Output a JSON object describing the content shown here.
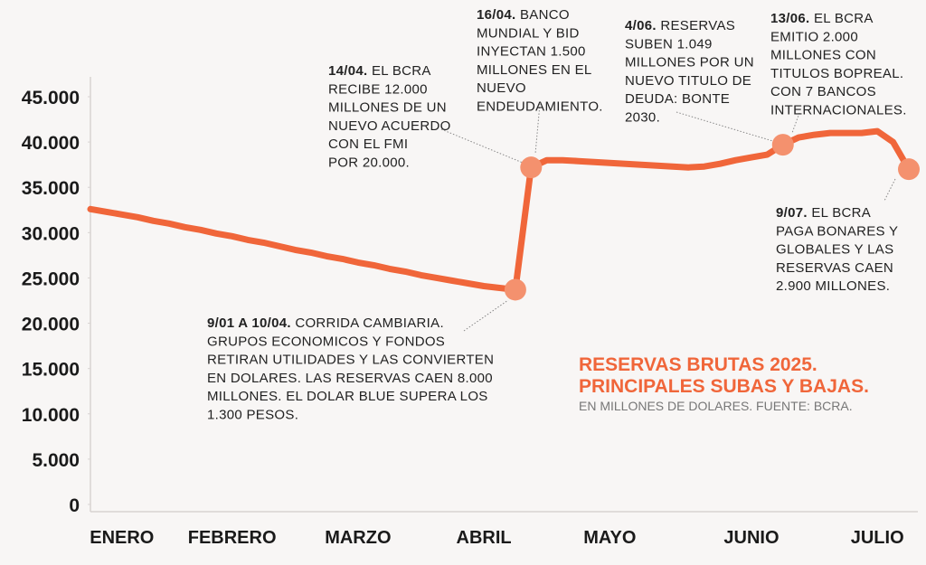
{
  "chart_data": {
    "type": "line",
    "title": [
      "RESERVAS BRUTAS 2025.",
      "PRINCIPALES SUBAS Y BAJAS."
    ],
    "subtitle": "EN MILLONES DE DOLARES. FUENTE: BCRA.",
    "categories": [
      null,
      null,
      "ENERO",
      null,
      null,
      null,
      null,
      null,
      null,
      "FEBRERO",
      null,
      null,
      null,
      null,
      null,
      null,
      null,
      "MARZO",
      null,
      null,
      null,
      null,
      null,
      null,
      null,
      "ABRIL",
      null,
      null,
      null,
      null,
      null,
      null,
      null,
      "MAYO",
      null,
      null,
      null,
      null,
      null,
      null,
      null,
      null,
      "JUNIO",
      null,
      null,
      null,
      null,
      null,
      null,
      null,
      "JULIO",
      null,
      null
    ],
    "series": [
      {
        "color": "#f0663a",
        "values": [
          32600,
          32300,
          32000,
          31700,
          31300,
          31000,
          30600,
          30300,
          29900,
          29600,
          29200,
          28900,
          28500,
          28100,
          27800,
          27400,
          27100,
          26700,
          26400,
          26000,
          25700,
          25300,
          25000,
          24700,
          24400,
          24100,
          23900,
          23700,
          37200,
          38000,
          38000,
          37900,
          37800,
          37700,
          37600,
          37500,
          37400,
          37300,
          37200,
          37300,
          37600,
          38000,
          38300,
          38600,
          39700,
          40500,
          40800,
          41000,
          41000,
          41000,
          41200,
          40000,
          37000
        ]
      },
      {
        "color": "#f4916e",
        "marker": "circle",
        "values": [
          null,
          null,
          null,
          null,
          null,
          null,
          null,
          null,
          null,
          null,
          null,
          null,
          null,
          null,
          null,
          null,
          null,
          null,
          null,
          null,
          null,
          null,
          null,
          null,
          null,
          null,
          null,
          23700,
          37200,
          null,
          null,
          null,
          null,
          null,
          null,
          null,
          null,
          null,
          null,
          null,
          null,
          null,
          null,
          null,
          39700,
          null,
          null,
          null,
          null,
          null,
          null,
          null,
          37000
        ]
      }
    ],
    "ylim": [
      0,
      45000
    ],
    "yticks": [
      0,
      {
        "value": 5000,
        "label": "5.000"
      },
      {
        "value": 10000,
        "label": "10.000"
      },
      {
        "value": 15000,
        "label": "15.000"
      },
      {
        "value": 20000,
        "label": "20.000"
      },
      {
        "value": 25000,
        "label": "25.000"
      },
      {
        "value": 30000,
        "label": "30.000"
      },
      {
        "value": 35000,
        "label": "35.000"
      },
      {
        "value": 40000,
        "label": "40.000"
      },
      {
        "value": 45000,
        "label": "45.000"
      }
    ],
    "annotations": [
      {
        "date": "9/01 A 10/04.",
        "lines": [
          " CORRIDA CAMBIARIA.",
          "GRUPOS ECONOMICOS Y FONDOS",
          "RETIRAN UTILIDADES Y LAS CONVIERTEN",
          "EN DOLARES. LAS RESERVAS CAEN 8.000",
          "MILLONES. EL DOLAR BLUE SUPERA LOS",
          "1.300 PESOS."
        ]
      },
      {
        "date": "14/04.",
        "lines": [
          " EL BCRA",
          "RECIBE 12.000",
          "MILLONES DE UN",
          "NUEVO ACUERDO",
          "CON EL FMI",
          "POR 20.000."
        ]
      },
      {
        "date": "16/04.",
        "lines": [
          " BANCO",
          "MUNDIAL Y BID",
          "INYECTAN 1.500",
          "MILLONES EN EL",
          "NUEVO",
          "ENDEUDAMIENTO."
        ]
      },
      {
        "date": "4/06.",
        "lines": [
          "  RESERVAS",
          "SUBEN 1.049",
          "MILLONES POR UN",
          "NUEVO TITULO DE",
          "DEUDA: BONTE",
          "2030."
        ]
      },
      {
        "date": "13/06.",
        "lines": [
          "  EL BCRA",
          "EMITIO 2.000",
          "MILLONES CON",
          "TITULOS BOPREAL.",
          "CON 7 BANCOS",
          "INTERNACIONALES."
        ]
      },
      {
        "date": "9/07.",
        "lines": [
          "  EL BCRA",
          "PAGA BONARES Y",
          "GLOBALES Y LAS",
          "RESERVAS CAEN",
          "2.900 MILLONES."
        ]
      }
    ]
  }
}
